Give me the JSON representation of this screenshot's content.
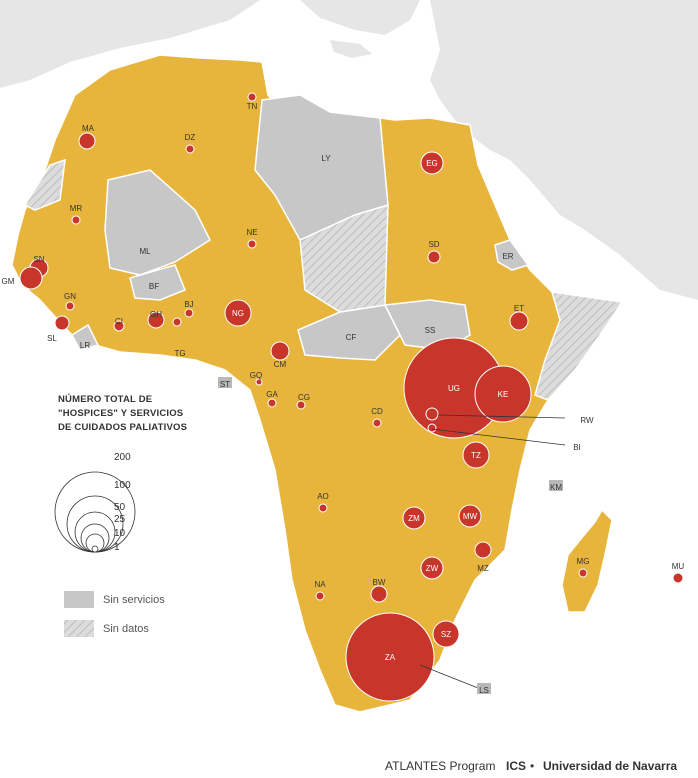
{
  "colors": {
    "ocean": "#ffffff",
    "other_land": "#e6e6e6",
    "with_services": "#e8b53c",
    "no_services": "#c7c7c7",
    "no_data": "#dcdcdc",
    "circle": "#c8352b",
    "border": "#ffffff"
  },
  "legend": {
    "title_lines": [
      "NÚMERO TOTAL DE",
      "\"HOSPICES\" Y SERVICIOS",
      "DE CUIDADOS PALIATIVOS"
    ],
    "sizes": [
      "200",
      "100",
      "50",
      "25",
      "10",
      "1"
    ],
    "no_services": "Sin servicios",
    "no_data": "Sin datos"
  },
  "credit": {
    "program": "ATLANTES Program",
    "ics": "ICS",
    "bullet": "•",
    "university": "Universidad de Navarra"
  },
  "map_data": {
    "country_labels": [
      "MA",
      "DZ",
      "TN",
      "LY",
      "EG",
      "MR",
      "ML",
      "NE",
      "SD",
      "ER",
      "SN",
      "GM",
      "GN",
      "BF",
      "BJ",
      "GH",
      "CI",
      "NG",
      "ET",
      "SL",
      "LR",
      "TG",
      "CF",
      "SS",
      "CM",
      "UG",
      "KE",
      "ST",
      "GQ",
      "GA",
      "CG",
      "CD",
      "RW",
      "BI",
      "TZ",
      "KM",
      "AO",
      "ZM",
      "MW",
      "MZ",
      "MG",
      "MU",
      "ZW",
      "NA",
      "BW",
      "ZA",
      "SZ",
      "LS"
    ]
  }
}
